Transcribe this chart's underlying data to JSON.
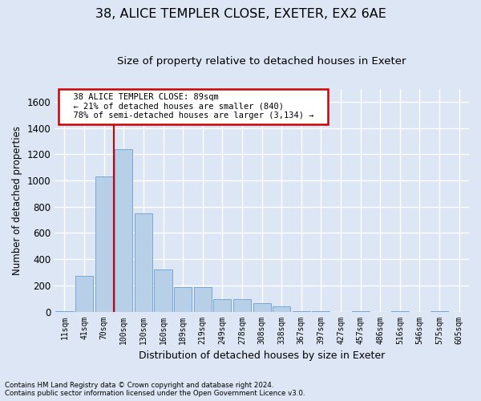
{
  "title1": "38, ALICE TEMPLER CLOSE, EXETER, EX2 6AE",
  "title2": "Size of property relative to detached houses in Exeter",
  "xlabel": "Distribution of detached houses by size in Exeter",
  "ylabel": "Number of detached properties",
  "footer1": "Contains HM Land Registry data © Crown copyright and database right 2024.",
  "footer2": "Contains public sector information licensed under the Open Government Licence v3.0.",
  "annotation_title": "38 ALICE TEMPLER CLOSE: 89sqm",
  "annotation_line1": "← 21% of detached houses are smaller (840)",
  "annotation_line2": "78% of semi-detached houses are larger (3,134) →",
  "bar_color": "#b8cfe8",
  "bar_edge_color": "#6a9fcf",
  "vline_color": "#cc0000",
  "background_color": "#dce6f5",
  "fig_background_color": "#dce6f5",
  "categories": [
    "11sqm",
    "41sqm",
    "70sqm",
    "100sqm",
    "130sqm",
    "160sqm",
    "189sqm",
    "219sqm",
    "249sqm",
    "278sqm",
    "308sqm",
    "338sqm",
    "367sqm",
    "397sqm",
    "427sqm",
    "457sqm",
    "486sqm",
    "516sqm",
    "546sqm",
    "575sqm",
    "605sqm"
  ],
  "values": [
    5,
    275,
    1030,
    1240,
    750,
    320,
    185,
    185,
    95,
    95,
    65,
    40,
    5,
    5,
    0,
    5,
    0,
    5,
    0,
    5,
    0
  ],
  "ylim": [
    0,
    1700
  ],
  "yticks": [
    0,
    200,
    400,
    600,
    800,
    1000,
    1200,
    1400,
    1600
  ],
  "grid_color": "#ffffff",
  "title1_fontsize": 11.5,
  "title2_fontsize": 9.5,
  "vline_x": 2.5
}
